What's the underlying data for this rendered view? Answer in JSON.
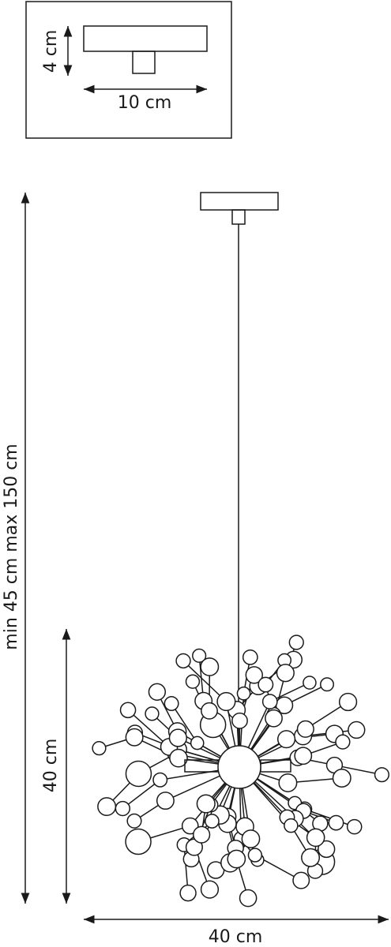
{
  "inset": {
    "height_label": "4 cm",
    "width_label": "10 cm"
  },
  "dimensions": {
    "total_height": "min 45 cm max 150 cm",
    "shade_height": "40 cm",
    "shade_width": "40 cm"
  }
}
